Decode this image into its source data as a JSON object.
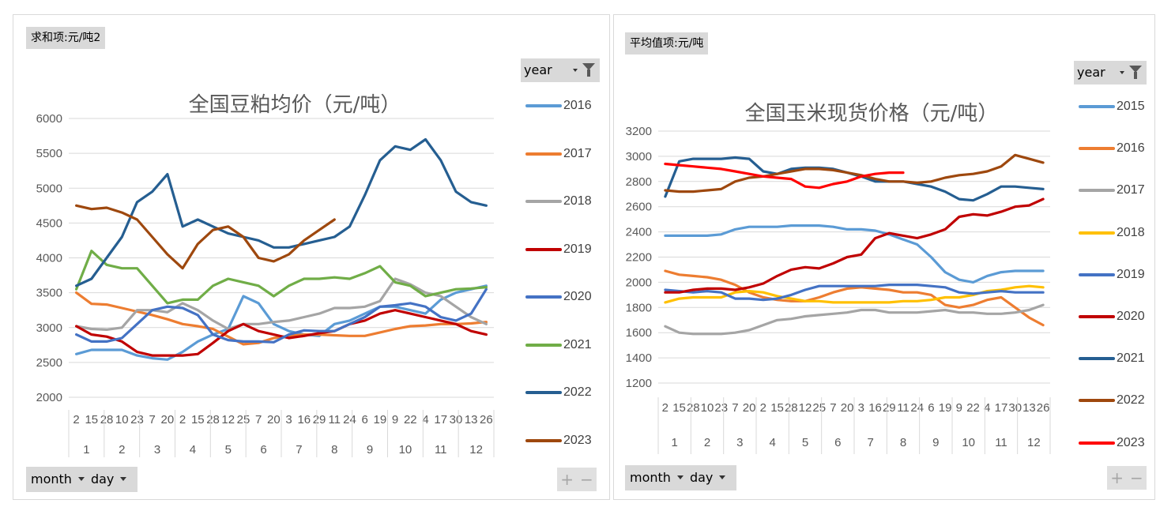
{
  "charts": [
    {
      "panel_label": "求和项:元/吨2",
      "year_button": "year",
      "field_buttons": [
        "month",
        "day"
      ],
      "plus_minus": [
        "+",
        "−"
      ],
      "chart_data": {
        "type": "line",
        "title": "全国豆粕均价（元/吨）",
        "ylim": [
          2000,
          6000
        ],
        "yticks": [
          "2000",
          "2500",
          "3000",
          "3500",
          "4000",
          "4500",
          "5000",
          "5500",
          "6000"
        ],
        "x_day_ticks": [
          "2",
          "15",
          "28",
          "10",
          "23",
          "7",
          "20",
          "2",
          "15",
          "28",
          "12",
          "25",
          "7",
          "20",
          "3",
          "16",
          "29",
          "11",
          "24",
          "6",
          "19",
          "9",
          "22",
          "4",
          "17",
          "30",
          "13",
          "26"
        ],
        "x_month_ticks": [
          "1",
          "2",
          "3",
          "4",
          "5",
          "6",
          "7",
          "8",
          "9",
          "10",
          "11",
          "12"
        ],
        "grid": true,
        "legend_position": "right",
        "series": [
          {
            "name": "2016",
            "color": "#5b9bd5",
            "values": [
              2620,
              2680,
              2680,
              2680,
              2600,
              2560,
              2540,
              2650,
              2800,
              2900,
              2980,
              3450,
              3350,
              3050,
              2950,
              2900,
              2880,
              3050,
              3100,
              3200,
              3300,
              3300,
              3250,
              3200,
              3400,
              3500,
              3550,
              3600
            ]
          },
          {
            "name": "2017",
            "color": "#ed7d31",
            "values": [
              3500,
              3340,
              3330,
              3280,
              3230,
              3180,
              3120,
              3050,
              3020,
              2980,
              2870,
              2760,
              2780,
              2850,
              2880,
              2900,
              2900,
              2890,
              2880,
              2880,
              2930,
              2980,
              3020,
              3030,
              3050,
              3050,
              3060,
              3080
            ]
          },
          {
            "name": "2018",
            "color": "#a5a5a5",
            "values": [
              3020,
              2980,
              2970,
              3000,
              3250,
              3250,
              3220,
              3350,
              3250,
              3100,
              2980,
              3050,
              3050,
              3080,
              3100,
              3150,
              3200,
              3280,
              3280,
              3300,
              3380,
              3700,
              3620,
              3500,
              3450,
              3300,
              3150,
              3050
            ]
          },
          {
            "name": "2019",
            "color": "#c00000",
            "values": [
              3020,
              2900,
              2870,
              2800,
              2650,
              2600,
              2600,
              2600,
              2620,
              2780,
              2950,
              3050,
              2950,
              2900,
              2850,
              2880,
              2920,
              2950,
              3050,
              3100,
              3200,
              3250,
              3200,
              3150,
              3100,
              3050,
              2950,
              2900
            ]
          },
          {
            "name": "2020",
            "color": "#4472c4",
            "values": [
              2900,
              2800,
              2800,
              2850,
              3050,
              3250,
              3300,
              3280,
              3180,
              2900,
              2820,
              2800,
              2800,
              2790,
              2900,
              2960,
              2950,
              2950,
              3050,
              3150,
              3300,
              3320,
              3350,
              3300,
              3150,
              3100,
              3200,
              3550
            ]
          },
          {
            "name": "2021",
            "color": "#70ad47",
            "values": [
              3550,
              4100,
              3900,
              3850,
              3850,
              3600,
              3350,
              3400,
              3400,
              3600,
              3700,
              3650,
              3600,
              3450,
              3600,
              3700,
              3700,
              3720,
              3700,
              3780,
              3880,
              3650,
              3600,
              3450,
              3500,
              3550,
              3560,
              3580
            ]
          },
          {
            "name": "2022",
            "color": "#255e91",
            "values": [
              3600,
              3700,
              4000,
              4300,
              4800,
              4950,
              5200,
              4450,
              4550,
              4450,
              4350,
              4300,
              4250,
              4150,
              4150,
              4200,
              4250,
              4300,
              4450,
              4900,
              5400,
              5600,
              5550,
              5700,
              5400,
              4950,
              4800,
              4750
            ]
          },
          {
            "name": "2023",
            "color": "#9e480e",
            "values": [
              4750,
              4700,
              4720,
              4650,
              4550,
              4300,
              4050,
              3850,
              4200,
              4400,
              4450,
              4300,
              4000,
              3950,
              4050,
              4250,
              4400,
              4550
            ]
          }
        ]
      }
    },
    {
      "panel_label": "平均值项:元/吨",
      "year_button": "year",
      "field_buttons": [
        "month",
        "day"
      ],
      "plus_minus": [
        "+",
        "−"
      ],
      "chart_data": {
        "type": "line",
        "title": "全国玉米现货价格（元/吨）",
        "ylim": [
          1200,
          3200
        ],
        "yticks": [
          "1200",
          "1400",
          "1600",
          "1800",
          "2000",
          "2200",
          "2400",
          "2600",
          "2800",
          "3000",
          "3200"
        ],
        "x_day_ticks": [
          "2",
          "15",
          "28",
          "10",
          "23",
          "7",
          "20",
          "2",
          "15",
          "28",
          "12",
          "25",
          "7",
          "20",
          "3",
          "16",
          "29",
          "11",
          "24",
          "6",
          "19",
          "9",
          "22",
          "4",
          "17",
          "30",
          "13",
          "26"
        ],
        "x_month_ticks": [
          "1",
          "2",
          "3",
          "4",
          "5",
          "6",
          "7",
          "8",
          "9",
          "10",
          "11",
          "12"
        ],
        "grid": true,
        "legend_position": "right",
        "series": [
          {
            "name": "2015",
            "color": "#5b9bd5",
            "values": [
              2370,
              2370,
              2370,
              2370,
              2380,
              2420,
              2440,
              2440,
              2440,
              2450,
              2450,
              2450,
              2440,
              2420,
              2420,
              2410,
              2380,
              2340,
              2300,
              2200,
              2080,
              2020,
              2000,
              2050,
              2080,
              2090,
              2090,
              2090
            ]
          },
          {
            "name": "2016",
            "color": "#ed7d31",
            "values": [
              2090,
              2060,
              2050,
              2040,
              2020,
              1980,
              1920,
              1880,
              1860,
              1850,
              1850,
              1880,
              1920,
              1950,
              1960,
              1950,
              1940,
              1920,
              1920,
              1900,
              1820,
              1800,
              1820,
              1860,
              1880,
              1800,
              1720,
              1660
            ]
          },
          {
            "name": "2017",
            "color": "#a5a5a5",
            "values": [
              1650,
              1600,
              1590,
              1590,
              1590,
              1600,
              1620,
              1660,
              1700,
              1710,
              1730,
              1740,
              1750,
              1760,
              1780,
              1780,
              1760,
              1760,
              1760,
              1770,
              1780,
              1760,
              1760,
              1750,
              1750,
              1760,
              1780,
              1820
            ]
          },
          {
            "name": "2018",
            "color": "#ffc000",
            "values": [
              1840,
              1870,
              1880,
              1880,
              1880,
              1920,
              1930,
              1920,
              1890,
              1870,
              1850,
              1850,
              1840,
              1840,
              1840,
              1840,
              1840,
              1850,
              1850,
              1860,
              1880,
              1880,
              1900,
              1930,
              1940,
              1960,
              1970,
              1960
            ]
          },
          {
            "name": "2019",
            "color": "#4472c4",
            "values": [
              1940,
              1930,
              1920,
              1930,
              1920,
              1870,
              1870,
              1860,
              1870,
              1900,
              1940,
              1970,
              1970,
              1970,
              1970,
              1970,
              1980,
              1980,
              1980,
              1970,
              1960,
              1920,
              1910,
              1920,
              1930,
              1920,
              1920,
              1920
            ]
          },
          {
            "name": "2020",
            "color": "#c00000",
            "values": [
              1920,
              1920,
              1940,
              1950,
              1950,
              1940,
              1960,
              1990,
              2050,
              2100,
              2120,
              2110,
              2150,
              2200,
              2220,
              2350,
              2390,
              2370,
              2350,
              2380,
              2420,
              2520,
              2540,
              2530,
              2560,
              2600,
              2610,
              2660
            ]
          },
          {
            "name": "2021",
            "color": "#255e91",
            "values": [
              2680,
              2960,
              2980,
              2980,
              2980,
              2990,
              2980,
              2880,
              2860,
              2900,
              2910,
              2910,
              2900,
              2870,
              2840,
              2800,
              2800,
              2800,
              2780,
              2760,
              2720,
              2660,
              2650,
              2700,
              2760,
              2760,
              2750,
              2740
            ]
          },
          {
            "name": "2022",
            "color": "#9e480e",
            "values": [
              2730,
              2720,
              2720,
              2730,
              2740,
              2800,
              2830,
              2840,
              2860,
              2880,
              2900,
              2900,
              2890,
              2870,
              2850,
              2820,
              2800,
              2800,
              2790,
              2800,
              2830,
              2850,
              2860,
              2880,
              2920,
              3010,
              2980,
              2950
            ]
          },
          {
            "name": "2023",
            "color": "#ff0000",
            "values": [
              2940,
              2930,
              2920,
              2910,
              2900,
              2880,
              2860,
              2840,
              2830,
              2820,
              2760,
              2750,
              2780,
              2800,
              2840,
              2860,
              2870,
              2870
            ]
          }
        ]
      }
    }
  ]
}
